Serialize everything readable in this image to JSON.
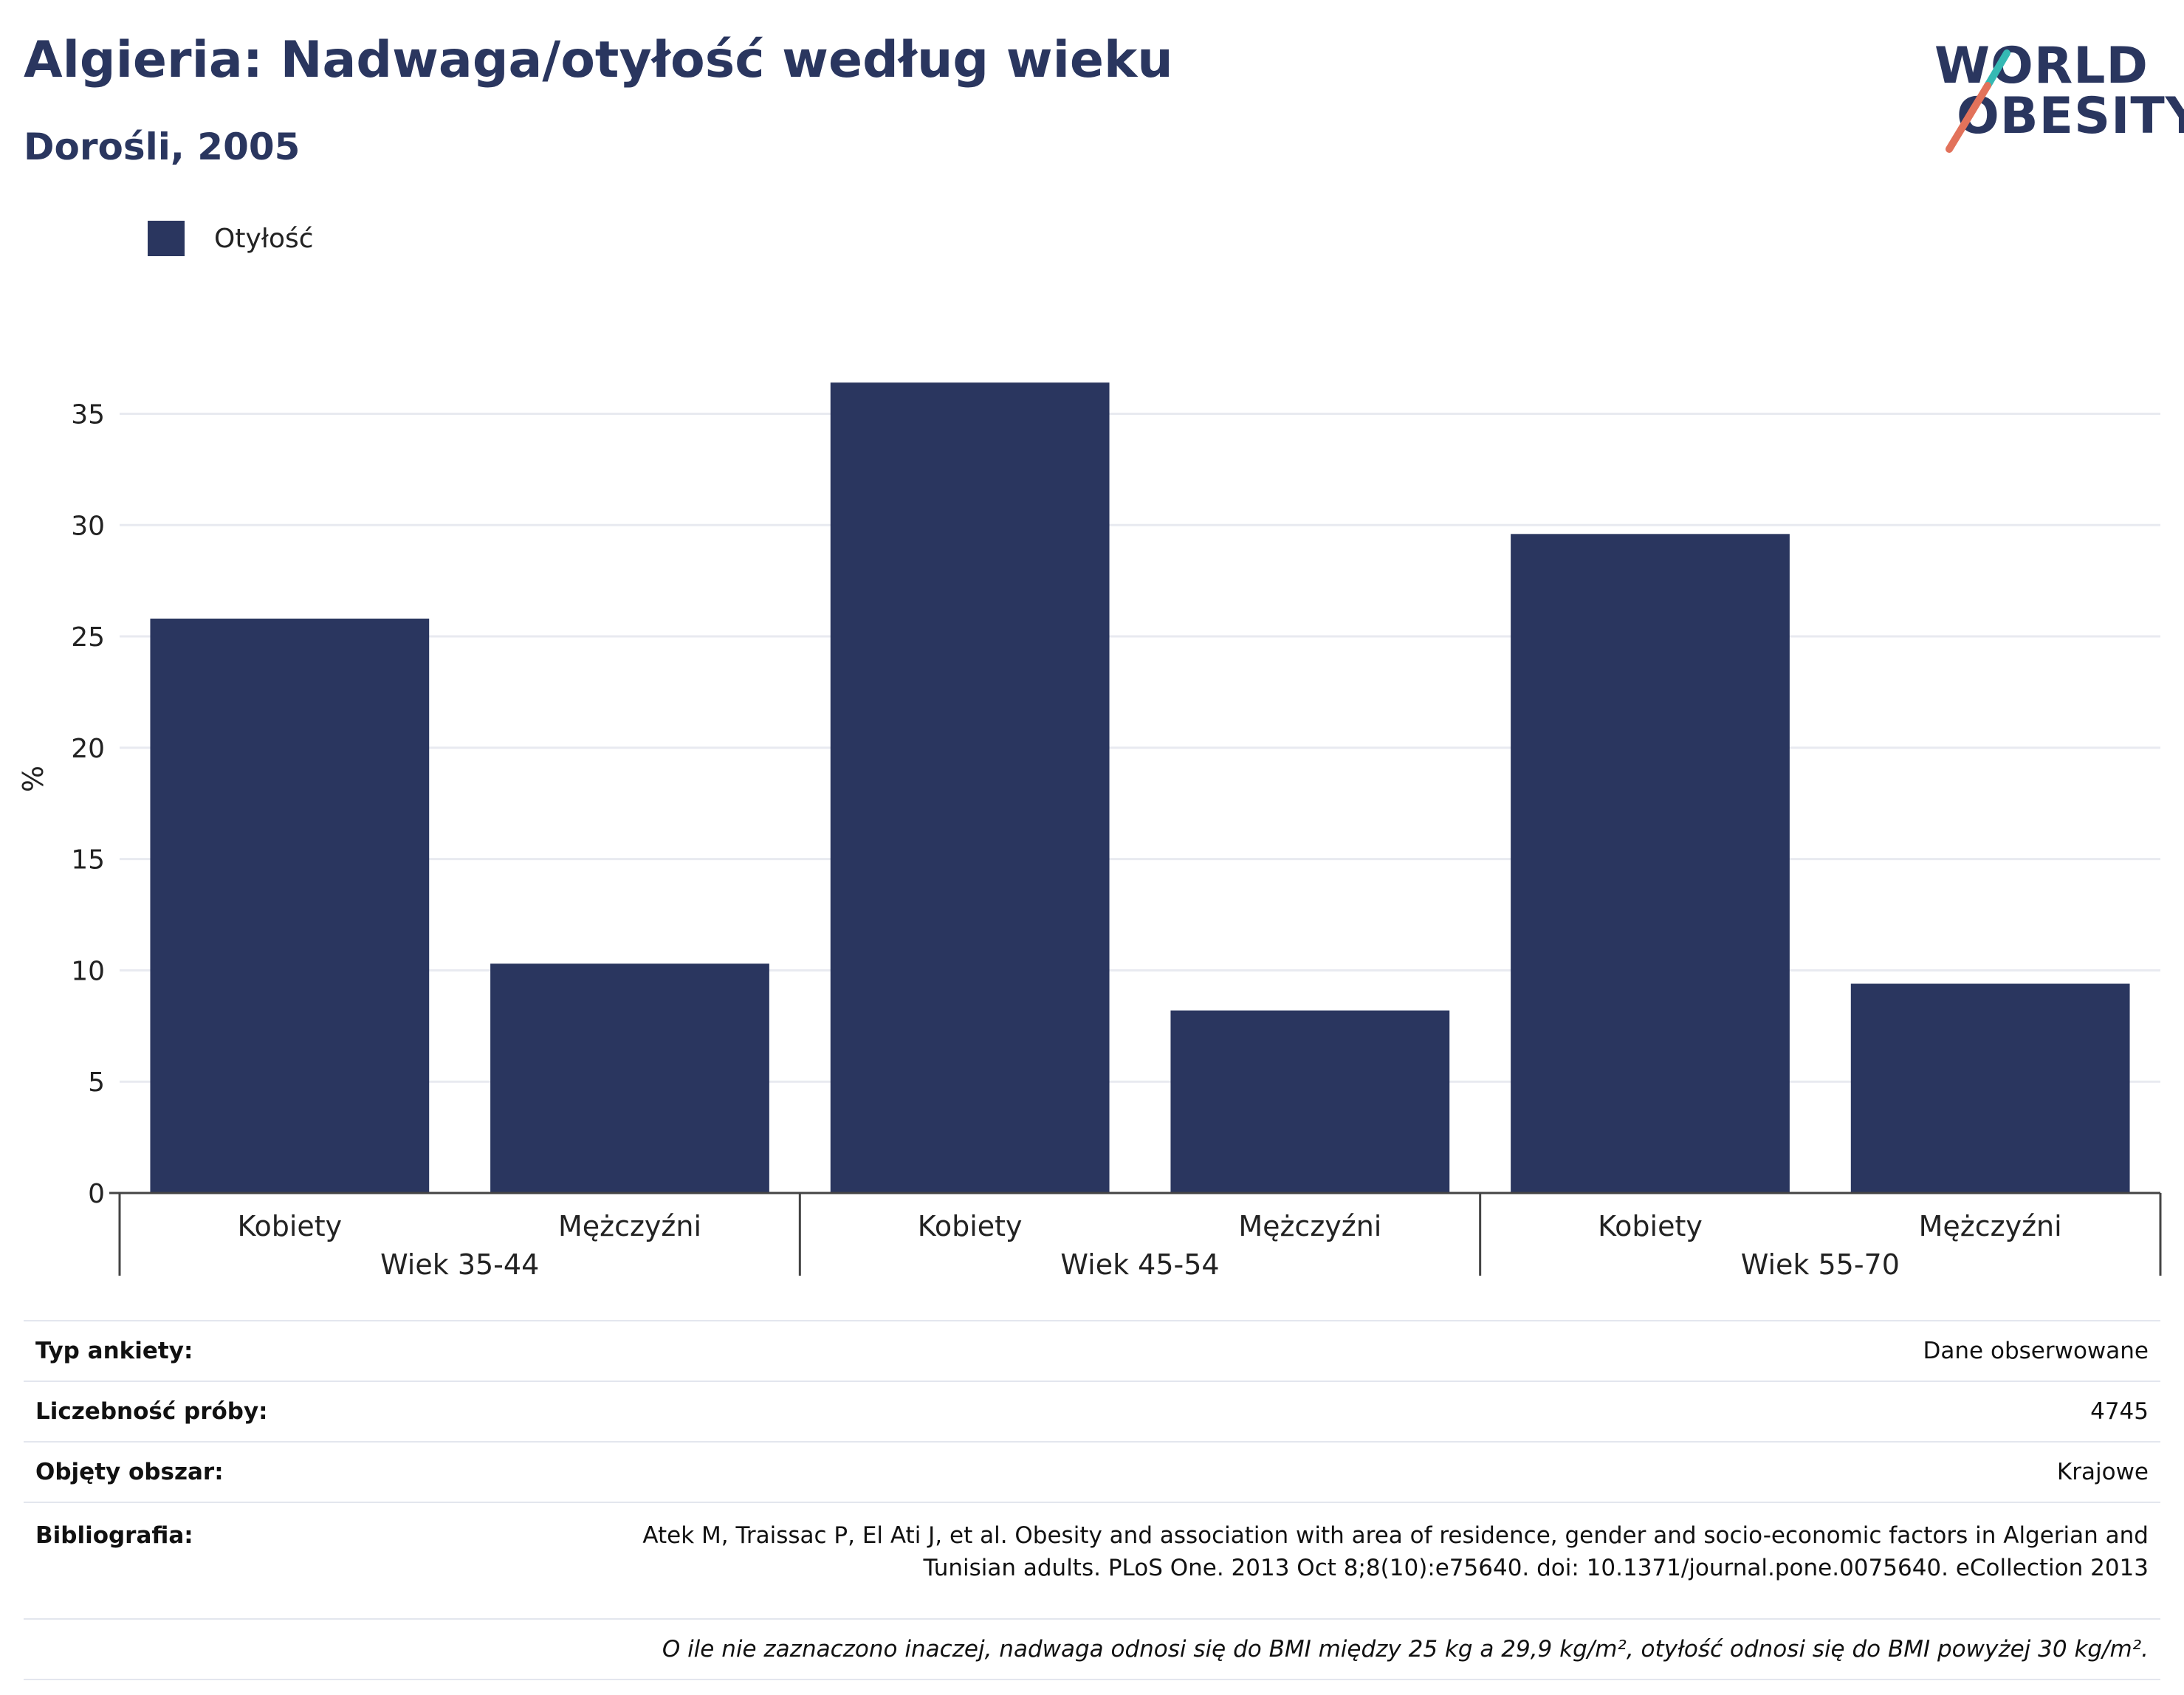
{
  "header": {
    "title": "Algieria: Nadwaga/otyłość według wieku",
    "subtitle": "Dorośli, 2005"
  },
  "logo": {
    "line1": "WORLD",
    "line2": "OBESITY",
    "colors": {
      "navy": "#2a365f",
      "teal": "#35b9b4",
      "coral": "#e2725b"
    }
  },
  "legend": {
    "items": [
      {
        "label": "Otyłość",
        "color": "#2a365f"
      }
    ]
  },
  "chart_data": {
    "type": "bar",
    "ylabel": "%",
    "ylim": [
      0,
      38
    ],
    "yticks": [
      0,
      5,
      10,
      15,
      20,
      25,
      30,
      35
    ],
    "grid": true,
    "legend_position": "top-left",
    "groups": [
      {
        "label": "Wiek 35-44",
        "categories": [
          "Kobiety",
          "Mężczyźni"
        ]
      },
      {
        "label": "Wiek 45-54",
        "categories": [
          "Kobiety",
          "Mężczyźni"
        ]
      },
      {
        "label": "Wiek 55-70",
        "categories": [
          "Kobiety",
          "Mężczyźni"
        ]
      }
    ],
    "series": [
      {
        "name": "Otyłość",
        "color": "#2a365f",
        "values": [
          25.8,
          10.3,
          36.4,
          8.2,
          29.6,
          9.4
        ]
      }
    ]
  },
  "info": {
    "rows": [
      {
        "key": "Typ ankiety:",
        "value": "Dane obserwowane"
      },
      {
        "key": "Liczebność próby:",
        "value": "4745"
      },
      {
        "key": "Objęty obszar:",
        "value": "Krajowe"
      }
    ],
    "bibliography": {
      "key": "Bibliografia:",
      "line1": "Atek M, Traissac P, El Ati J, et al. Obesity and association with area of residence, gender and socio-economic factors in Algerian and",
      "line2": "Tunisian adults. PLoS One. 2013 Oct 8;8(10):e75640. doi: 10.1371/journal.pone.0075640. eCollection 2013"
    },
    "note": "O ile nie zaznaczono inaczej, nadwaga odnosi się do BMI między 25 kg a 29,9 kg/m², otyłość odnosi się do BMI powyżej 30 kg/m²."
  }
}
